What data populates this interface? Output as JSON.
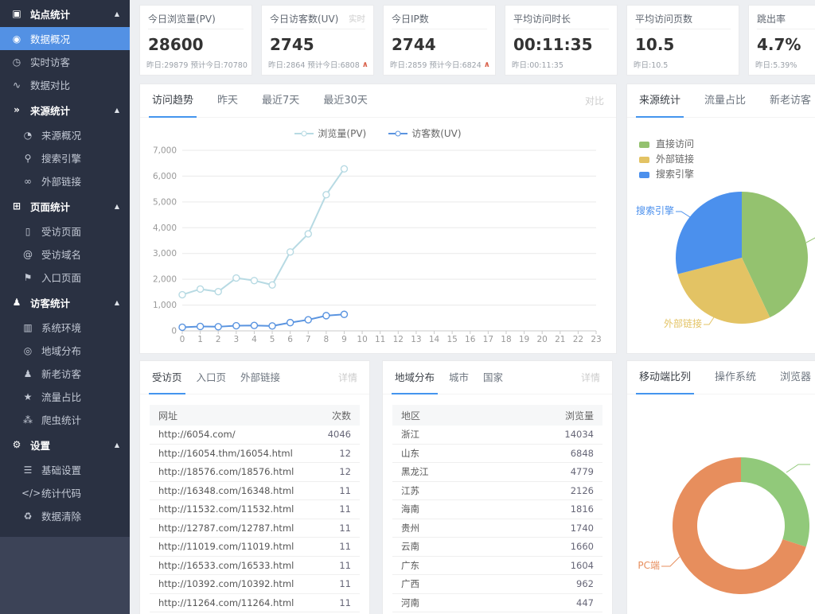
{
  "colors": {
    "accent": "#4495ee",
    "sidebar_bg": "#2a3142",
    "sidebar_lower_bg": "#3c4357",
    "sidebar_active": "#5391e4",
    "page_bg": "#edeff2",
    "rise_arrow": "#d9604a"
  },
  "sidebar": {
    "items": [
      {
        "label": "站点统计",
        "icon": "▣",
        "type": "group",
        "arrow": "▲"
      },
      {
        "label": "数据概况",
        "icon": "◉",
        "type": "item",
        "active": true
      },
      {
        "label": "实时访客",
        "icon": "◷",
        "type": "item"
      },
      {
        "label": "数据对比",
        "icon": "∿",
        "type": "item"
      },
      {
        "label": "来源统计",
        "icon": "»",
        "type": "group",
        "arrow": "▲"
      },
      {
        "label": "来源概况",
        "icon": "◔",
        "type": "sub"
      },
      {
        "label": "搜索引擎",
        "icon": "⚲",
        "type": "sub"
      },
      {
        "label": "外部链接",
        "icon": "∞",
        "type": "sub"
      },
      {
        "label": "页面统计",
        "icon": "⊞",
        "type": "group",
        "arrow": "▲"
      },
      {
        "label": "受访页面",
        "icon": "▯",
        "type": "sub"
      },
      {
        "label": "受访域名",
        "icon": "@",
        "type": "sub"
      },
      {
        "label": "入口页面",
        "icon": "⚑",
        "type": "sub"
      },
      {
        "label": "访客统计",
        "icon": "♟",
        "type": "group",
        "arrow": "▲"
      },
      {
        "label": "系统环境",
        "icon": "▥",
        "type": "sub"
      },
      {
        "label": "地域分布",
        "icon": "◎",
        "type": "sub"
      },
      {
        "label": "新老访客",
        "icon": "♟",
        "type": "sub"
      },
      {
        "label": "流量占比",
        "icon": "★",
        "type": "sub"
      },
      {
        "label": "爬虫统计",
        "icon": "⁂",
        "type": "sub"
      },
      {
        "label": "设置",
        "icon": "⚙",
        "type": "group",
        "arrow": "▲"
      },
      {
        "label": "基础设置",
        "icon": "☰",
        "type": "sub"
      },
      {
        "label": "统计代码",
        "icon": "</>",
        "type": "sub"
      },
      {
        "label": "数据清除",
        "icon": "♻",
        "type": "sub"
      }
    ]
  },
  "cards": [
    {
      "title": "今日浏览量(PV)",
      "tag": "",
      "value": "28600",
      "sub": "昨日:29879 预计今日:70780",
      "arrow": ""
    },
    {
      "title": "今日访客数(UV)",
      "tag": "实时",
      "value": "2745",
      "sub": "昨日:2864 预计今日:6808",
      "arrow": "∧"
    },
    {
      "title": "今日IP数",
      "tag": "",
      "value": "2744",
      "sub": "昨日:2859 预计今日:6824",
      "arrow": "∧"
    },
    {
      "title": "平均访问时长",
      "tag": "",
      "value": "00:11:35",
      "sub": "昨日:00:11:35",
      "arrow": ""
    },
    {
      "title": "平均访问页数",
      "tag": "",
      "value": "10.5",
      "sub": "昨日:10.5",
      "arrow": ""
    },
    {
      "title": "跳出率",
      "tag": "",
      "value": "4.7%",
      "sub": "昨日:5.39%",
      "arrow": ""
    }
  ],
  "panels": {
    "trend": {
      "tabs": [
        "访问趋势",
        "昨天",
        "最近7天",
        "最近30天"
      ],
      "link": "对比"
    },
    "source": {
      "tabs": [
        "来源统计",
        "流量占比",
        "新老访客"
      ]
    },
    "visited": {
      "tabs": [
        "受访页",
        "入口页",
        "外部链接"
      ],
      "link": "详情",
      "columns": [
        "网址",
        "次数"
      ],
      "rows": [
        {
          "url": "http://6054.com/",
          "count": "4046"
        },
        {
          "url": "http://16054.thm/16054.html",
          "count": "12"
        },
        {
          "url": "http://18576.com/18576.html",
          "count": "12"
        },
        {
          "url": "http://16348.com/16348.html",
          "count": "11"
        },
        {
          "url": "http://11532.com/11532.html",
          "count": "11"
        },
        {
          "url": "http://12787.com/12787.html",
          "count": "11"
        },
        {
          "url": "http://11019.com/11019.html",
          "count": "11"
        },
        {
          "url": "http://16533.com/16533.html",
          "count": "11"
        },
        {
          "url": "http://10392.com/10392.html",
          "count": "11"
        },
        {
          "url": "http://11264.com/11264.html",
          "count": "11"
        }
      ]
    },
    "region": {
      "tabs": [
        "地域分布",
        "城市",
        "国家"
      ],
      "link": "详情",
      "columns": [
        "地区",
        "浏览量"
      ],
      "rows": [
        {
          "region": "浙江",
          "views": "14034"
        },
        {
          "region": "山东",
          "views": "6848"
        },
        {
          "region": "黑龙江",
          "views": "4779"
        },
        {
          "region": "江苏",
          "views": "2126"
        },
        {
          "region": "海南",
          "views": "1816"
        },
        {
          "region": "贵州",
          "views": "1740"
        },
        {
          "region": "云南",
          "views": "1660"
        },
        {
          "region": "广东",
          "views": "1604"
        },
        {
          "region": "广西",
          "views": "962"
        },
        {
          "region": "河南",
          "views": "447"
        }
      ]
    },
    "device": {
      "tabs": [
        "移动端比列",
        "操作系统",
        "浏览器"
      ]
    }
  },
  "chart_data": [
    {
      "id": "trend",
      "type": "line",
      "title": "访问趋势",
      "xlabel": "",
      "ylabel": "",
      "x": [
        "0",
        "1",
        "2",
        "3",
        "4",
        "5",
        "6",
        "7",
        "8",
        "9",
        "10",
        "11",
        "12",
        "13",
        "14",
        "15",
        "16",
        "17",
        "18",
        "19",
        "20",
        "21",
        "22",
        "23"
      ],
      "series": [
        {
          "name": "浏览量(PV)",
          "color": "#b7dae3",
          "values": [
            1400,
            1620,
            1520,
            2050,
            1950,
            1780,
            3060,
            3760,
            5280,
            6280
          ]
        },
        {
          "name": "访客数(UV)",
          "color": "#5a94e0",
          "values": [
            140,
            170,
            160,
            200,
            210,
            190,
            320,
            430,
            590,
            640
          ]
        }
      ],
      "ylim": [
        0,
        7000
      ],
      "ytick_step": 1000,
      "grid": true,
      "legend_position": "top"
    },
    {
      "id": "source",
      "type": "pie",
      "title": "来源统计",
      "slices": [
        {
          "label": "直接访问",
          "value": 43,
          "color": "#94c26f"
        },
        {
          "label": "外部链接",
          "value": 28,
          "color": "#e3c364"
        },
        {
          "label": "搜索引擎",
          "value": 29,
          "color": "#4b90ed"
        }
      ],
      "legend_position": "top-left",
      "values_are": "estimated_percent"
    },
    {
      "id": "device",
      "type": "donut",
      "title": "移动端比列",
      "slices": [
        {
          "label": "",
          "value": 30,
          "color": "#91c97a"
        },
        {
          "label": "PC端",
          "value": 70,
          "color": "#e78e5d"
        }
      ],
      "values_are": "estimated_percent"
    }
  ]
}
